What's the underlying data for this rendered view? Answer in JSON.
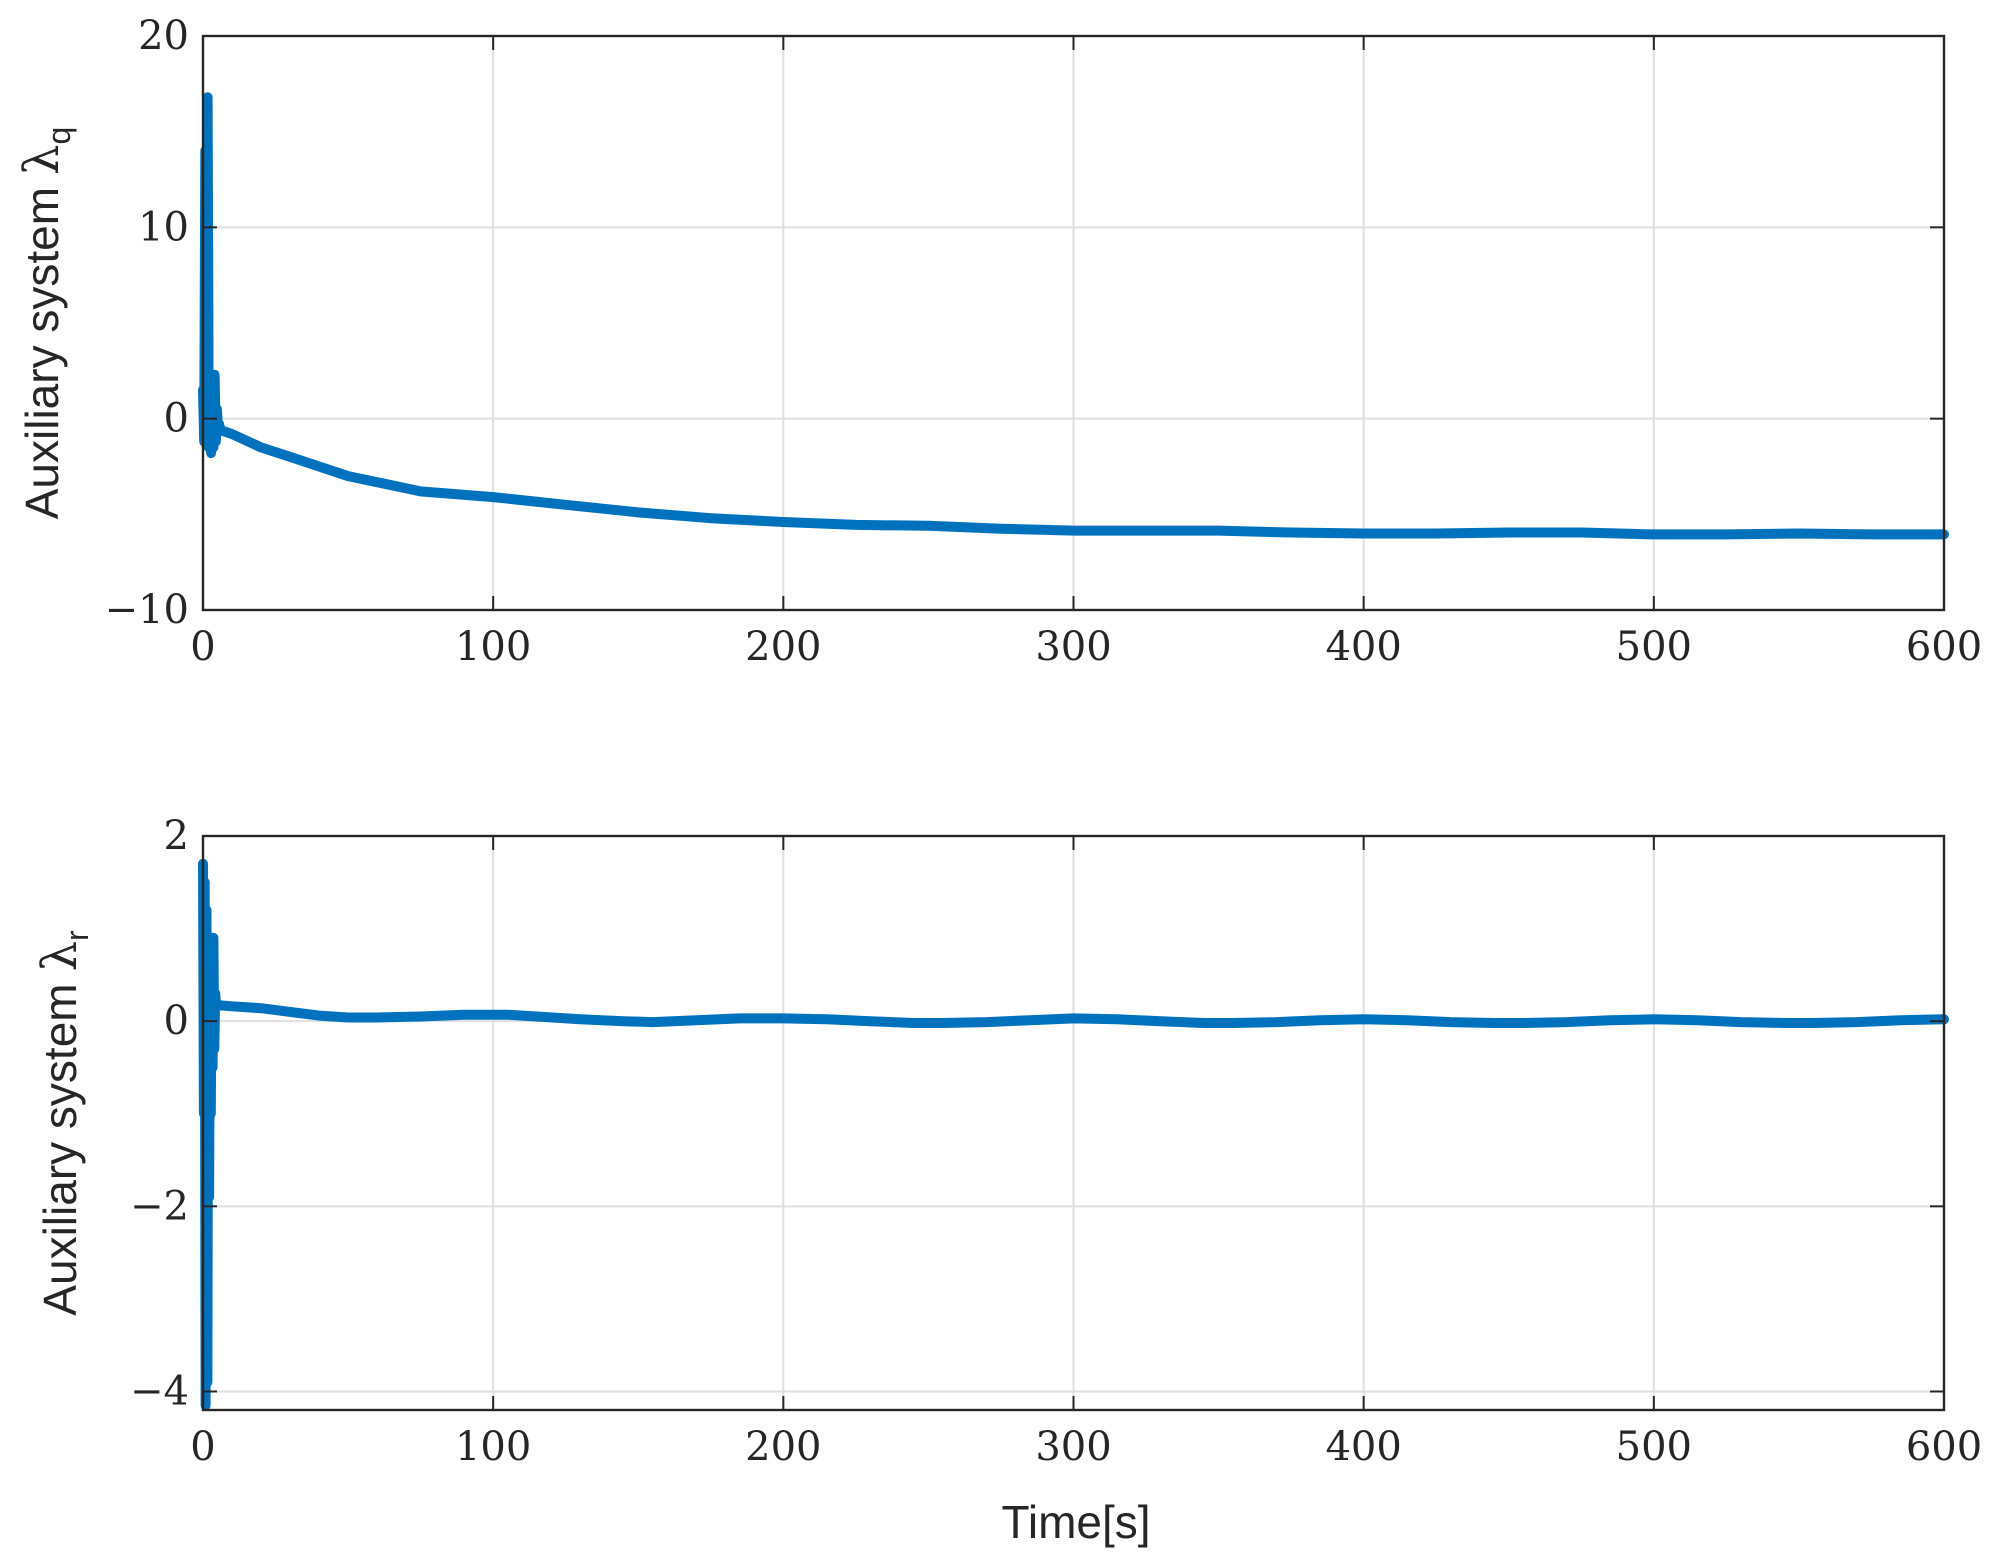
{
  "figure": {
    "xlabel": "Time[s]"
  },
  "chart_data": [
    {
      "type": "line",
      "ylabel": "Auxiliary system",
      "ylabel_symbol": "λ",
      "ylabel_subscript": "q",
      "xlim": [
        0,
        600
      ],
      "ylim": [
        -10,
        20
      ],
      "xticks": [
        0,
        100,
        200,
        300,
        400,
        500,
        600
      ],
      "yticks": [
        -10,
        0,
        10,
        20
      ],
      "ytick_labels": [
        "−10",
        "0",
        "10",
        "20"
      ],
      "grid": true,
      "color": "#0072BD",
      "series": [
        {
          "x": [
            0,
            0.4,
            0.8,
            1.2,
            1.6,
            2.0,
            2.4,
            2.8,
            3.2,
            3.6,
            4.0,
            4.4,
            4.8,
            5.2,
            5.6,
            6,
            10,
            20,
            30,
            50,
            75,
            100,
            125,
            150,
            175,
            200,
            225,
            250,
            275,
            300,
            325,
            350,
            375,
            400,
            425,
            450,
            475,
            500,
            525,
            550,
            575,
            600
          ],
          "y": [
            1.5,
            -1.2,
            14,
            0.5,
            16.8,
            -1.5,
            1.0,
            -1.8,
            2.0,
            -1.5,
            2.3,
            -1.2,
            0.5,
            -0.6,
            -0.3,
            -0.6,
            -0.8,
            -1.5,
            -2.0,
            -3.0,
            -3.8,
            -4.1,
            -4.5,
            -4.9,
            -5.2,
            -5.4,
            -5.55,
            -5.6,
            -5.75,
            -5.85,
            -5.85,
            -5.85,
            -5.95,
            -6.0,
            -6.0,
            -5.95,
            -5.95,
            -6.05,
            -6.05,
            -6.0,
            -6.05,
            -6.05
          ]
        }
      ]
    },
    {
      "type": "line",
      "ylabel": "Auxiliary system",
      "ylabel_symbol": "λ",
      "ylabel_subscript": "r",
      "xlim": [
        0,
        600
      ],
      "ylim": [
        -4.2,
        2
      ],
      "xticks": [
        0,
        100,
        200,
        300,
        400,
        500,
        600
      ],
      "yticks": [
        -4,
        -2,
        0,
        2
      ],
      "ytick_labels": [
        "−4",
        "−2",
        "0",
        "2"
      ],
      "grid": true,
      "color": "#0072BD",
      "series": [
        {
          "x": [
            0,
            0.3,
            0.6,
            0.9,
            1.2,
            1.5,
            1.8,
            2.1,
            2.4,
            2.7,
            3.0,
            3.3,
            3.6,
            3.9,
            4.2,
            4.5,
            5,
            6,
            10,
            20,
            30,
            40,
            50,
            60,
            75,
            90,
            105,
            115,
            130,
            145,
            155,
            170,
            185,
            200,
            215,
            230,
            245,
            255,
            270,
            285,
            300,
            315,
            330,
            345,
            355,
            370,
            385,
            400,
            415,
            430,
            445,
            455,
            470,
            485,
            500,
            515,
            530,
            545,
            555,
            570,
            585,
            600
          ],
          "y": [
            1.7,
            -1.0,
            1.5,
            -4.15,
            1.2,
            -3.9,
            0.8,
            -1.9,
            0.6,
            -1.0,
            0.9,
            -0.5,
            0.9,
            -0.3,
            0.3,
            0.17,
            0.17,
            0.17,
            0.16,
            0.14,
            0.1,
            0.06,
            0.04,
            0.04,
            0.05,
            0.07,
            0.07,
            0.05,
            0.02,
            0.0,
            -0.01,
            0.01,
            0.03,
            0.03,
            0.02,
            0.0,
            -0.02,
            -0.02,
            -0.01,
            0.01,
            0.03,
            0.02,
            0.0,
            -0.02,
            -0.02,
            -0.01,
            0.01,
            0.02,
            0.01,
            -0.01,
            -0.02,
            -0.02,
            -0.01,
            0.01,
            0.02,
            0.01,
            -0.01,
            -0.02,
            -0.02,
            -0.01,
            0.01,
            0.02
          ]
        }
      ]
    }
  ]
}
